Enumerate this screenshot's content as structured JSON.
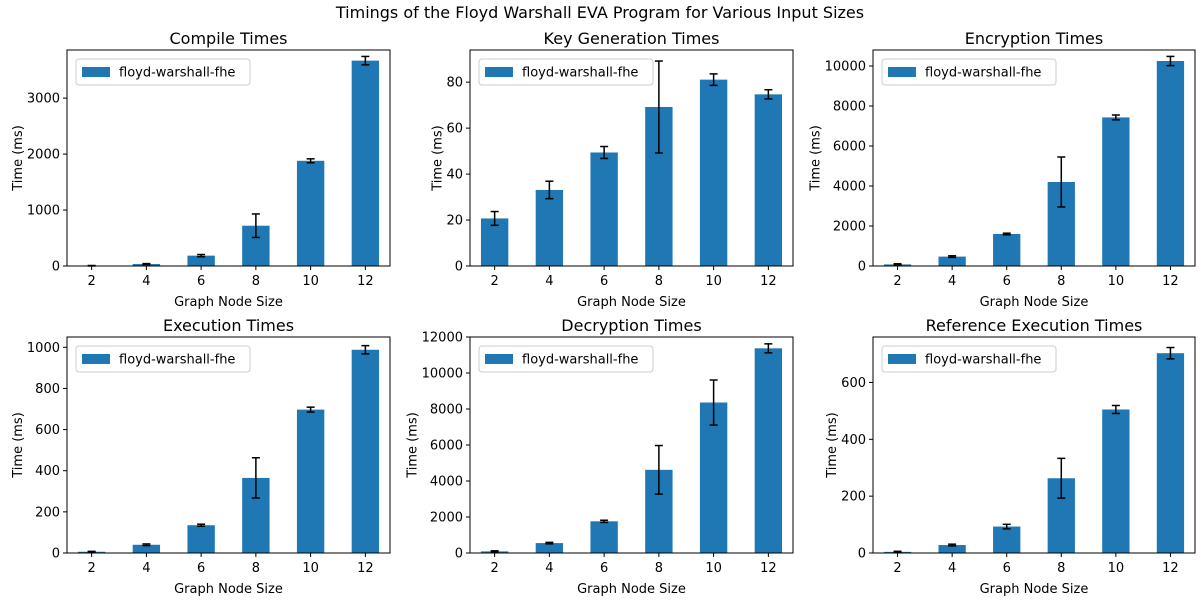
{
  "figure": {
    "suptitle": "Timings of the Floyd Warshall EVA Program for Various Input Sizes"
  },
  "chart_data": [
    {
      "type": "bar",
      "title": "Compile Times",
      "xlabel": "Graph Node Size",
      "ylabel": "Time (ms)",
      "categories": [
        "2",
        "4",
        "6",
        "8",
        "10",
        "12"
      ],
      "series": [
        {
          "name": "floyd-warshall-fhe",
          "values": [
            5,
            35,
            185,
            720,
            1880,
            3670
          ],
          "errors": [
            4,
            8,
            20,
            210,
            35,
            75
          ]
        }
      ],
      "ylim": [
        0,
        3860
      ],
      "yticks": [
        0,
        1000,
        2000,
        3000
      ],
      "color": "#1f77b4",
      "legend": "top-left",
      "grid": false
    },
    {
      "type": "bar",
      "title": "Key Generation Times",
      "xlabel": "Graph Node Size",
      "ylabel": "Time (ms)",
      "categories": [
        "2",
        "4",
        "6",
        "8",
        "10",
        "12"
      ],
      "series": [
        {
          "name": "floyd-warshall-fhe",
          "values": [
            20.7,
            33.1,
            49.4,
            69.2,
            81.1,
            74.7
          ],
          "errors": [
            3,
            3.8,
            2.6,
            20,
            2.5,
            2
          ]
        }
      ],
      "ylim": [
        0,
        94
      ],
      "yticks": [
        0,
        20,
        40,
        60,
        80
      ],
      "color": "#1f77b4",
      "legend": "top-left",
      "grid": false
    },
    {
      "type": "bar",
      "title": "Encryption Times",
      "xlabel": "Graph Node Size",
      "ylabel": "Time (ms)",
      "categories": [
        "2",
        "4",
        "6",
        "8",
        "10",
        "12"
      ],
      "series": [
        {
          "name": "floyd-warshall-fhe",
          "values": [
            80,
            470,
            1600,
            4200,
            7430,
            10250
          ],
          "errors": [
            30,
            40,
            40,
            1250,
            120,
            230
          ]
        }
      ],
      "ylim": [
        0,
        10800
      ],
      "yticks": [
        0,
        2000,
        4000,
        6000,
        8000,
        10000
      ],
      "color": "#1f77b4",
      "legend": "top-left",
      "grid": false
    },
    {
      "type": "bar",
      "title": "Execution Times",
      "xlabel": "Graph Node Size",
      "ylabel": "Time (ms)",
      "categories": [
        "2",
        "4",
        "6",
        "8",
        "10",
        "12"
      ],
      "series": [
        {
          "name": "floyd-warshall-fhe",
          "values": [
            6,
            40,
            135,
            365,
            697,
            988
          ],
          "errors": [
            2,
            4,
            5,
            98,
            12,
            20
          ]
        }
      ],
      "ylim": [
        0,
        1050
      ],
      "yticks": [
        0,
        200,
        400,
        600,
        800,
        1000
      ],
      "color": "#1f77b4",
      "legend": "top-left",
      "grid": false
    },
    {
      "type": "bar",
      "title": "Decryption Times",
      "xlabel": "Graph Node Size",
      "ylabel": "Time (ms)",
      "categories": [
        "2",
        "4",
        "6",
        "8",
        "10",
        "12"
      ],
      "series": [
        {
          "name": "floyd-warshall-fhe",
          "values": [
            90,
            550,
            1760,
            4620,
            8360,
            11370
          ],
          "errors": [
            30,
            40,
            60,
            1350,
            1250,
            250
          ]
        }
      ],
      "ylim": [
        0,
        12000
      ],
      "yticks": [
        0,
        2000,
        4000,
        6000,
        8000,
        10000,
        12000
      ],
      "color": "#1f77b4",
      "legend": "top-left",
      "grid": false
    },
    {
      "type": "bar",
      "title": "Reference Execution Times",
      "xlabel": "Graph Node Size",
      "ylabel": "Time (ms)",
      "categories": [
        "2",
        "4",
        "6",
        "8",
        "10",
        "12"
      ],
      "series": [
        {
          "name": "floyd-warshall-fhe",
          "values": [
            4,
            28,
            93,
            263,
            505,
            703
          ],
          "errors": [
            2,
            3,
            8,
            70,
            14,
            20
          ]
        }
      ],
      "ylim": [
        0,
        760
      ],
      "yticks": [
        0,
        200,
        400,
        600
      ],
      "color": "#1f77b4",
      "legend": "top-left",
      "grid": false
    }
  ]
}
